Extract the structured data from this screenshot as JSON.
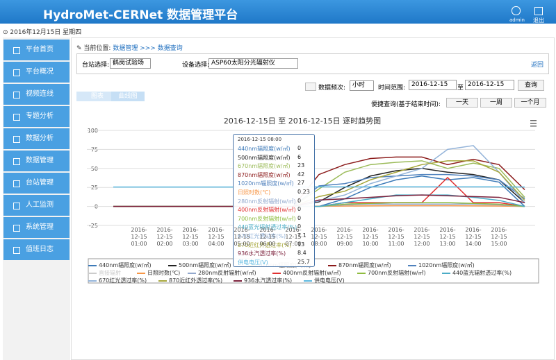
{
  "header": {
    "title": "HydroMet-CERNet 数据管理平台",
    "user": "admin",
    "logout": "退出"
  },
  "date": "2016年12月15日 星期四",
  "menu": [
    "平台首页",
    "平台概况",
    "视频连线",
    "专题分析",
    "数据分析",
    "数据管理",
    "台站管理",
    "人工监测",
    "系统管理",
    "值班日志"
  ],
  "breadcrumb": {
    "label": "当前位置:",
    "section": "数据管理",
    "separator": ">>>",
    "page": "数据查询"
  },
  "form": {
    "station_label": "台站选择:",
    "station": "鹤岗试验场",
    "device_label": "设备选择:",
    "device": "ASP60太阳分光辐射仪",
    "back": "返回",
    "freq_label": "数据频次:",
    "freq": "小时",
    "range_label": "时间范围:",
    "start": "2016-12-15",
    "to": "至",
    "end": "2016-12-15",
    "query": "查询",
    "quick_label": "便捷查询(基于结束时间):",
    "quick": [
      "一天",
      "一周",
      "一个月"
    ]
  },
  "tabs": [
    "图表",
    "曲线图"
  ],
  "chart_data": {
    "type": "line",
    "title": "2016-12-15日 至 2016-12-15日 逐时趋势图",
    "categories": [
      null,
      "2016-12-15 01:00",
      "2016-12-15 02:00",
      "2016-12-15 03:00",
      "2016-12-15 04:00",
      "2016-12-15 05:00",
      "2016-12-15 06:00",
      "2016-12-15 07:00",
      "2016-12-15 08:00",
      "2016-12-15 09:00",
      "2016-12-15 10:00",
      "2016-12-15 11:00",
      "2016-12-15 12:00",
      "2016-12-15 13:00",
      "2016-12-15 14:00",
      "2016-12-15 15:00",
      null
    ],
    "ylim": [
      -25,
      100
    ],
    "yticks": [
      -25,
      0,
      25,
      50,
      75,
      100
    ],
    "grid": true,
    "series": [
      {
        "name": "440nm辐照度(w/㎡)",
        "color": "#3d7ab8",
        "values": [
          0,
          0,
          0,
          0,
          0,
          0,
          0,
          0,
          0,
          10,
          25,
          35,
          40,
          35,
          38,
          32,
          0
        ]
      },
      {
        "name": "500nm辐照度(w/㎡)",
        "color": "#222222",
        "values": [
          0,
          0,
          0,
          0,
          0,
          0,
          0,
          0,
          6,
          25,
          40,
          47,
          50,
          45,
          42,
          35,
          5
        ]
      },
      {
        "name": "670nm辐照度(w/㎡)",
        "color": "#9bbb59",
        "values": [
          0,
          0,
          0,
          0,
          0,
          0,
          0,
          0,
          23,
          45,
          55,
          58,
          60,
          50,
          57,
          50,
          12
        ]
      },
      {
        "name": "870nm辐照度(w/㎡)",
        "color": "#8b1a1a",
        "values": [
          0,
          0,
          0,
          0,
          0,
          0,
          0,
          0,
          42,
          55,
          63,
          65,
          65,
          55,
          62,
          55,
          22
        ]
      },
      {
        "name": "1020nm辐照度(w/㎡)",
        "color": "#4f81bd",
        "values": [
          0,
          0,
          0,
          0,
          0,
          0,
          0,
          0,
          27,
          30,
          38,
          40,
          42,
          42,
          40,
          35,
          10
        ]
      },
      {
        "name": "直接辐射",
        "color": "#bbbbbb",
        "visible": false,
        "values": [
          null,
          null,
          null,
          null,
          null,
          null,
          null,
          null,
          null,
          null,
          null,
          null,
          null,
          null,
          null,
          null,
          null
        ]
      },
      {
        "name": "日照时数(℃)",
        "color": "#f79646",
        "values": [
          0,
          0,
          0,
          0,
          0,
          0,
          0,
          0,
          0.23,
          0.5,
          0.8,
          1,
          1,
          1,
          0.8,
          0.5,
          0
        ]
      },
      {
        "name": "280nm反射辐射(w/㎡)",
        "color": "#92a8cd",
        "values": [
          0,
          0,
          0,
          0,
          0,
          0,
          0,
          0,
          0,
          2,
          3,
          3,
          3,
          3,
          3,
          2,
          0
        ]
      },
      {
        "name": "400nm反射辐射(w/㎡)",
        "color": "#e03030",
        "values": [
          0,
          0,
          0,
          0,
          0,
          0,
          0,
          0,
          0,
          5,
          5,
          5,
          5,
          38,
          5,
          5,
          0
        ]
      },
      {
        "name": "700nm反射辐射(w/㎡)",
        "color": "#8fbc3f",
        "values": [
          0,
          0,
          0,
          0,
          0,
          0,
          0,
          0,
          0,
          3,
          4,
          5,
          5,
          5,
          4,
          3,
          0
        ]
      },
      {
        "name": "440蓝光辐射透过率(%)",
        "color": "#4bacc6",
        "values": [
          0,
          0,
          0,
          0,
          0,
          0,
          0,
          0,
          0,
          5,
          10,
          15,
          15,
          15,
          12,
          8,
          0
        ]
      },
      {
        "name": "670红光透过率(%)",
        "color": "#93b3d9",
        "values": [
          0,
          0,
          0,
          0,
          0,
          0,
          0,
          0,
          7.1,
          15,
          30,
          40,
          50,
          75,
          80,
          45,
          5
        ]
      },
      {
        "name": "870近红外透过率(%)",
        "color": "#a6a63a",
        "values": [
          0,
          0,
          0,
          0,
          0,
          0,
          0,
          0,
          13,
          20,
          35,
          45,
          55,
          60,
          60,
          45,
          8
        ]
      },
      {
        "name": "936水汽透过率(%)",
        "color": "#7b1f3a",
        "values": [
          0,
          0,
          0,
          0,
          0,
          0,
          0,
          0,
          8.4,
          10,
          12,
          14,
          15,
          14,
          13,
          12,
          5
        ]
      },
      {
        "name": "供电电压(V)",
        "color": "#5bb8e0",
        "values": [
          25.5,
          25.5,
          25.5,
          25.5,
          25.5,
          25.5,
          25.5,
          25.5,
          25.7,
          25.7,
          25.7,
          25.7,
          25.7,
          25.7,
          25.7,
          25.7,
          25.5
        ]
      }
    ]
  }
}
